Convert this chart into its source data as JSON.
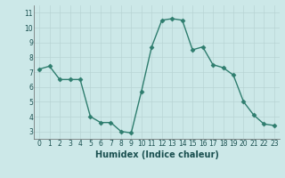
{
  "x": [
    0,
    1,
    2,
    3,
    4,
    5,
    6,
    7,
    8,
    9,
    10,
    11,
    12,
    13,
    14,
    15,
    16,
    17,
    18,
    19,
    20,
    21,
    22,
    23
  ],
  "y": [
    7.2,
    7.4,
    6.5,
    6.5,
    6.5,
    4.0,
    3.6,
    3.6,
    3.0,
    2.9,
    5.7,
    8.7,
    10.5,
    10.6,
    10.5,
    8.5,
    8.7,
    7.5,
    7.3,
    6.8,
    5.0,
    4.1,
    3.5,
    3.4
  ],
  "line_color": "#2e7d6e",
  "marker": "D",
  "marker_size": 2.5,
  "bg_color": "#cce8e8",
  "grid_color": "#b8d4d4",
  "xlabel": "Humidex (Indice chaleur)",
  "xlim": [
    -0.5,
    23.5
  ],
  "ylim": [
    2.5,
    11.5
  ],
  "yticks": [
    3,
    4,
    5,
    6,
    7,
    8,
    9,
    10,
    11
  ],
  "xticks": [
    0,
    1,
    2,
    3,
    4,
    5,
    6,
    7,
    8,
    9,
    10,
    11,
    12,
    13,
    14,
    15,
    16,
    17,
    18,
    19,
    20,
    21,
    22,
    23
  ],
  "tick_label_size": 5.5,
  "xlabel_size": 7.0,
  "line_width": 1.0
}
